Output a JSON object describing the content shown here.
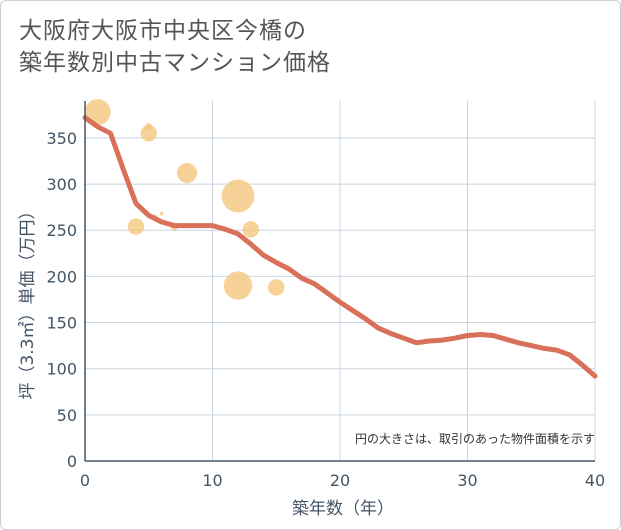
{
  "title": {
    "line1": "大阪府大阪市中央区今橋の",
    "line2": "築年数別中古マンション価格"
  },
  "chart_data": {
    "type": "scatter",
    "title": "大阪府大阪市中央区今橋の築年数別中古マンション価格",
    "xlabel": "築年数（年）",
    "ylabel": "坪（3.3㎡）単価（万円）",
    "xlim": [
      0,
      40
    ],
    "ylim": [
      0,
      390
    ],
    "xticks": [
      0,
      10,
      20,
      30,
      40
    ],
    "yticks": [
      0,
      50,
      100,
      150,
      200,
      250,
      300,
      350
    ],
    "grid": true,
    "note": "円の大きさは、取引のあった物件面積を示す",
    "colors": {
      "bubble": "#f5c77e",
      "line": "#d9705a",
      "grid": "#c8d4e0",
      "axis": "#445566"
    },
    "bubbles": [
      {
        "x": 1,
        "y": 378,
        "size": 5
      },
      {
        "x": 4,
        "y": 254,
        "size": 2
      },
      {
        "x": 5,
        "y": 362,
        "size": 0.4
      },
      {
        "x": 5,
        "y": 355,
        "size": 2
      },
      {
        "x": 5.5,
        "y": 265,
        "size": 0.1
      },
      {
        "x": 6,
        "y": 268,
        "size": 0.1
      },
      {
        "x": 7,
        "y": 253,
        "size": 0.3
      },
      {
        "x": 8,
        "y": 312,
        "size": 3
      },
      {
        "x": 12,
        "y": 287,
        "size": 8
      },
      {
        "x": 12,
        "y": 190,
        "size": 6
      },
      {
        "x": 13,
        "y": 251,
        "size": 2
      },
      {
        "x": 15,
        "y": 188,
        "size": 2
      }
    ],
    "trend": {
      "x": [
        0,
        1,
        2,
        3,
        4,
        5,
        6,
        7,
        8,
        9,
        10,
        11,
        12,
        13,
        14,
        15,
        16,
        17,
        18,
        19,
        20,
        21,
        22,
        23,
        24,
        25,
        26,
        27,
        28,
        29,
        30,
        31,
        32,
        33,
        34,
        35,
        36,
        37,
        38,
        39,
        40
      ],
      "y": [
        372,
        362,
        355,
        316,
        279,
        266,
        259,
        255,
        255,
        255,
        255,
        251,
        246,
        235,
        223,
        215,
        208,
        198,
        192,
        182,
        172,
        163,
        154,
        144,
        138,
        133,
        128,
        130,
        131,
        133,
        136,
        137,
        136,
        132,
        128,
        125,
        122,
        120,
        115,
        104,
        92
      ]
    }
  }
}
